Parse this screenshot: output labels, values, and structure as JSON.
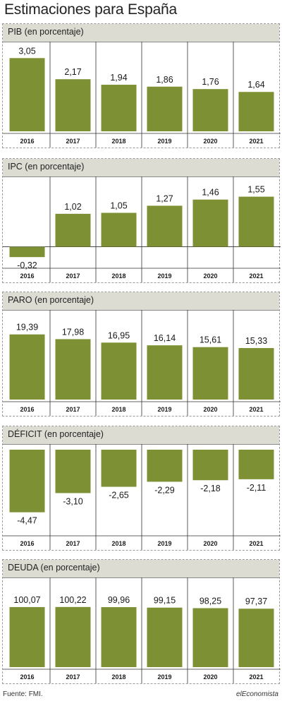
{
  "title": "Estimaciones para España",
  "source": "Fuente: FMI.",
  "brand": "elEconomista",
  "colors": {
    "bar": "#7d9134",
    "header_bg": "#dcdcd3",
    "grid": "#333333"
  },
  "chart_data": [
    {
      "type": "bar",
      "title": "PIB (en porcentaje)",
      "categories": [
        "2016",
        "2017",
        "2018",
        "2019",
        "2020",
        "2021"
      ],
      "values": [
        3.05,
        2.17,
        1.94,
        1.86,
        1.76,
        1.64
      ],
      "labels": [
        "3,05",
        "2,17",
        "1,94",
        "1,86",
        "1,76",
        "1,64"
      ],
      "ylim": [
        0,
        3.5
      ]
    },
    {
      "type": "bar",
      "title": "IPC (en porcentaje)",
      "categories": [
        "2016",
        "2017",
        "2018",
        "2019",
        "2020",
        "2021"
      ],
      "values": [
        -0.32,
        1.02,
        1.05,
        1.27,
        1.46,
        1.55
      ],
      "labels": [
        "-0,32",
        "1,02",
        "1,05",
        "1,27",
        "1,46",
        "1,55"
      ],
      "ylim": [
        -0.6,
        2.0
      ]
    },
    {
      "type": "bar",
      "title": "PARO (en porcentaje)",
      "categories": [
        "2016",
        "2017",
        "2018",
        "2019",
        "2020",
        "2021"
      ],
      "values": [
        19.39,
        17.98,
        16.95,
        16.14,
        15.61,
        15.33
      ],
      "labels": [
        "19,39",
        "17,98",
        "16,95",
        "16,14",
        "15,61",
        "15,33"
      ],
      "ylim": [
        0,
        25
      ]
    },
    {
      "type": "bar",
      "title": "DÉFICIT (en porcentaje)",
      "categories": [
        "2016",
        "2017",
        "2018",
        "2019",
        "2020",
        "2021"
      ],
      "values": [
        -4.47,
        -3.1,
        -2.65,
        -2.29,
        -2.18,
        -2.11
      ],
      "labels": [
        "-4,47",
        "-3,10",
        "-2,65",
        "-2,29",
        "-2,18",
        "-2,11"
      ],
      "ylim": [
        -6,
        0
      ]
    },
    {
      "type": "bar",
      "title": "DEUDA (en porcentaje)",
      "categories": [
        "2016",
        "2017",
        "2018",
        "2019",
        "2020",
        "2021"
      ],
      "values": [
        100.07,
        100.22,
        99.96,
        99.15,
        98.25,
        97.37
      ],
      "labels": [
        "100,07",
        "100,22",
        "99,96",
        "99,15",
        "98,25",
        "97,37"
      ],
      "ylim": [
        0,
        140
      ]
    }
  ]
}
